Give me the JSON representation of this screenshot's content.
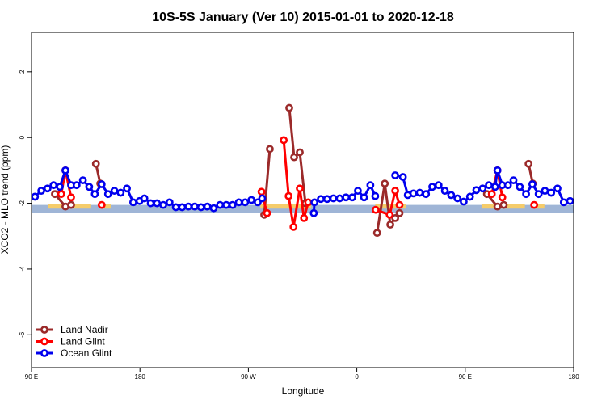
{
  "chart_data": {
    "type": "line",
    "title": "10S-5S January (Ver 10)   2015-01-01 to 2020-12-18",
    "xlabel": "Longitude",
    "ylabel": "XCO2 - MLO trend (ppm)",
    "xlim": [
      0,
      500
    ],
    "ylim": [
      -7,
      3.2
    ],
    "x_ticks": [
      {
        "value": 0,
        "label": "90 E"
      },
      {
        "value": 100,
        "label": "180"
      },
      {
        "value": 200,
        "label": "90 W"
      },
      {
        "value": 300,
        "label": "0"
      },
      {
        "value": 400,
        "label": "90 E"
      },
      {
        "value": 500,
        "label": "180"
      }
    ],
    "y_ticks": [
      {
        "value": 2,
        "label": "2"
      },
      {
        "value": 0,
        "label": "0"
      },
      {
        "value": -2,
        "label": "-2"
      },
      {
        "value": -4,
        "label": "-4"
      },
      {
        "value": -6,
        "label": "-6"
      }
    ],
    "band": {
      "y_min": -2.3,
      "y_max": -2.05,
      "color": "#9fb5d6"
    },
    "land_patches": [
      {
        "x0": 15,
        "x1": 55,
        "color": "#f5cc6a"
      },
      {
        "x0": 63,
        "x1": 73,
        "color": "#f5cc6a"
      },
      {
        "x0": 211,
        "x1": 258,
        "color": "#f5cc6a"
      },
      {
        "x0": 317,
        "x1": 345,
        "color": "#f5cc6a"
      },
      {
        "x0": 415,
        "x1": 455,
        "color": "#f5cc6a"
      },
      {
        "x0": 463,
        "x1": 473,
        "color": "#f5cc6a"
      }
    ],
    "legend_position": "bottom-left",
    "series": [
      {
        "name": "Land Nadir",
        "color": "#9b2a2a",
        "segments": [
          [
            [
              21.6,
              -1.72
            ],
            [
              31.3,
              -2.1
            ],
            [
              36.5,
              -2.05
            ]
          ],
          [
            [
              59.4,
              -0.8
            ],
            [
              63.4,
              -1.4
            ]
          ],
          [
            [
              214.6,
              -2.35
            ],
            [
              219.8,
              -0.35
            ]
          ],
          [
            [
              237.7,
              0.9
            ],
            [
              242.2,
              -0.6
            ],
            [
              247.4,
              -0.45
            ],
            [
              252.6,
              -2.0
            ]
          ],
          [
            [
              318.7,
              -2.9
            ],
            [
              325.8,
              -1.4
            ],
            [
              330.9,
              -2.65
            ],
            [
              335.4,
              -2.45
            ],
            [
              339.4,
              -2.3
            ]
          ],
          [
            [
              420.0,
              -1.72
            ],
            [
              429.7,
              -2.1
            ],
            [
              435.5,
              -2.05
            ]
          ],
          [
            [
              458.4,
              -0.8
            ],
            [
              462.3,
              -1.4
            ]
          ]
        ]
      },
      {
        "name": "Land Glint",
        "color": "#ff0000",
        "segments": [
          [
            [
              27.4,
              -1.72
            ],
            [
              31.3,
              -1.0
            ],
            [
              36.5,
              -1.82
            ]
          ],
          [
            [
              64.7,
              -2.05
            ]
          ],
          [
            [
              212.1,
              -1.65
            ],
            [
              217.2,
              -2.3
            ]
          ],
          [
            [
              232.6,
              -0.08
            ],
            [
              237.1,
              -1.78
            ],
            [
              241.6,
              -2.72
            ],
            [
              247.4,
              -1.55
            ],
            [
              251.3,
              -2.45
            ],
            [
              255.2,
              -1.97
            ]
          ],
          [
            [
              317.4,
              -2.2
            ],
            [
              330.3,
              -2.35
            ],
            [
              335.4,
              -1.62
            ],
            [
              339.4,
              -2.05
            ]
          ],
          [
            [
              424.5,
              -1.72
            ],
            [
              429.7,
              -1.0
            ],
            [
              434.2,
              -1.82
            ]
          ],
          [
            [
              463.6,
              -2.05
            ]
          ]
        ]
      },
      {
        "name": "Ocean Glint",
        "color": "#0000ee",
        "segments": [
          [
            [
              3.2,
              -1.8
            ],
            [
              9.0,
              -1.62
            ],
            [
              14.8,
              -1.55
            ],
            [
              20.3,
              -1.45
            ],
            [
              26.1,
              -1.5
            ],
            [
              31.3,
              -1.0
            ],
            [
              36.5,
              -1.45
            ],
            [
              41.6,
              -1.45
            ],
            [
              47.4,
              -1.3
            ],
            [
              53.2,
              -1.5
            ],
            [
              58.4,
              -1.72
            ],
            [
              64.7,
              -1.42
            ],
            [
              70.6,
              -1.72
            ],
            [
              76.4,
              -1.62
            ],
            [
              82.2,
              -1.68
            ],
            [
              88.0,
              -1.55
            ],
            [
              93.8,
              -1.97
            ],
            [
              99.6,
              -1.93
            ],
            [
              104.1,
              -1.85
            ],
            [
              109.9,
              -2.0
            ],
            [
              115.7,
              -2.0
            ],
            [
              121.5,
              -2.05
            ],
            [
              127.3,
              -1.97
            ],
            [
              133.1,
              -2.12
            ],
            [
              138.9,
              -2.12
            ],
            [
              144.7,
              -2.1
            ],
            [
              150.5,
              -2.1
            ],
            [
              156.3,
              -2.12
            ],
            [
              162.2,
              -2.1
            ],
            [
              168.0,
              -2.15
            ],
            [
              173.8,
              -2.05
            ],
            [
              179.6,
              -2.05
            ],
            [
              185.4,
              -2.05
            ],
            [
              191.2,
              -1.97
            ],
            [
              197.0,
              -1.97
            ],
            [
              202.8,
              -1.9
            ],
            [
              208.6,
              -1.97
            ],
            [
              212.7,
              -1.85
            ]
          ],
          [
            [
              260.3,
              -2.3
            ],
            [
              260.9,
              -1.97
            ],
            [
              266.8,
              -1.87
            ],
            [
              272.6,
              -1.87
            ],
            [
              278.4,
              -1.85
            ],
            [
              284.2,
              -1.85
            ],
            [
              290.0,
              -1.82
            ],
            [
              295.8,
              -1.82
            ],
            [
              301.0,
              -1.62
            ],
            [
              306.7,
              -1.82
            ],
            [
              312.5,
              -1.45
            ],
            [
              317.0,
              -1.78
            ]
          ],
          [
            [
              335.4,
              -1.15
            ],
            [
              342.5,
              -1.2
            ],
            [
              347.0,
              -1.75
            ],
            [
              352.2,
              -1.7
            ],
            [
              358.0,
              -1.68
            ],
            [
              363.8,
              -1.72
            ],
            [
              369.6,
              -1.5
            ],
            [
              375.4,
              -1.45
            ],
            [
              381.2,
              -1.62
            ],
            [
              387.0,
              -1.75
            ],
            [
              392.8,
              -1.85
            ],
            [
              398.6,
              -1.95
            ],
            [
              404.4,
              -1.8
            ],
            [
              410.2,
              -1.6
            ],
            [
              416.0,
              -1.55
            ],
            [
              421.8,
              -1.45
            ],
            [
              427.6,
              -1.5
            ],
            [
              429.7,
              -1.0
            ],
            [
              434.2,
              -1.45
            ],
            [
              439.4,
              -1.45
            ],
            [
              444.5,
              -1.3
            ],
            [
              450.3,
              -1.5
            ],
            [
              456.1,
              -1.72
            ],
            [
              461.9,
              -1.42
            ],
            [
              467.7,
              -1.72
            ],
            [
              473.5,
              -1.62
            ],
            [
              479.3,
              -1.68
            ],
            [
              485.1,
              -1.55
            ],
            [
              490.9,
              -1.97
            ],
            [
              496.7,
              -1.93
            ]
          ]
        ]
      }
    ]
  }
}
